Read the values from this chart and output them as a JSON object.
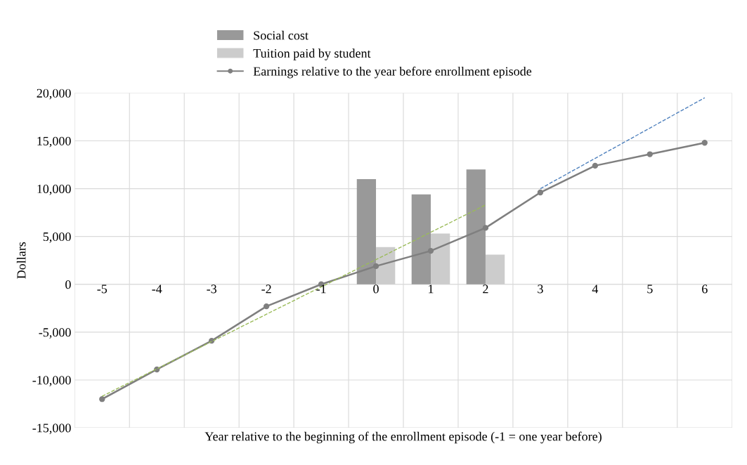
{
  "chart_data": {
    "type": "bar",
    "xlabel": "Year relative to the beginning of the enrollment episode (-1 = one year before)",
    "ylabel": "Dollars",
    "categories": [
      "-5",
      "-4",
      "-3",
      "-2",
      "-1",
      "0",
      "1",
      "2",
      "3",
      "4",
      "5",
      "6"
    ],
    "series": [
      {
        "name": "Social cost",
        "color": "#999999",
        "values": [
          null,
          null,
          null,
          null,
          null,
          11000,
          9400,
          12000,
          null,
          null,
          null,
          null
        ]
      },
      {
        "name": "Tuition paid by student",
        "color": "#cccccc",
        "values": [
          null,
          null,
          null,
          null,
          null,
          3900,
          5300,
          3100,
          null,
          null,
          null,
          null
        ]
      },
      {
        "name": "Earnings relative to the year before enrollment episode",
        "type": "line",
        "color": "#7f7f7f",
        "marker": "circle",
        "values": [
          -12000,
          -8900,
          -5900,
          -2300,
          0,
          1900,
          3500,
          5900,
          9600,
          12400,
          13600,
          14800
        ]
      },
      {
        "type": "line",
        "color": "#9bbb59",
        "line_style": "dashed",
        "marker": "none",
        "values": [
          -11700,
          null,
          null,
          null,
          null,
          null,
          null,
          8300,
          null,
          null,
          null,
          null
        ]
      },
      {
        "type": "line",
        "color": "#4f81bd",
        "line_style": "dashed",
        "marker": "none",
        "values": [
          null,
          null,
          null,
          null,
          null,
          null,
          null,
          null,
          10000,
          null,
          null,
          19500
        ]
      }
    ],
    "ylim": [
      -15000,
      20000
    ],
    "yticks": [
      {
        "value": -15000,
        "label": "-15,000"
      },
      {
        "value": -10000,
        "label": "-10,000"
      },
      {
        "value": -5000,
        "label": "-5,000"
      },
      0,
      {
        "value": 5000,
        "label": "5,000"
      },
      {
        "value": 10000,
        "label": "10,000"
      },
      {
        "value": 15000,
        "label": "15,000"
      },
      {
        "value": 20000,
        "label": "20,000"
      }
    ],
    "grid": true,
    "legend": "top"
  }
}
